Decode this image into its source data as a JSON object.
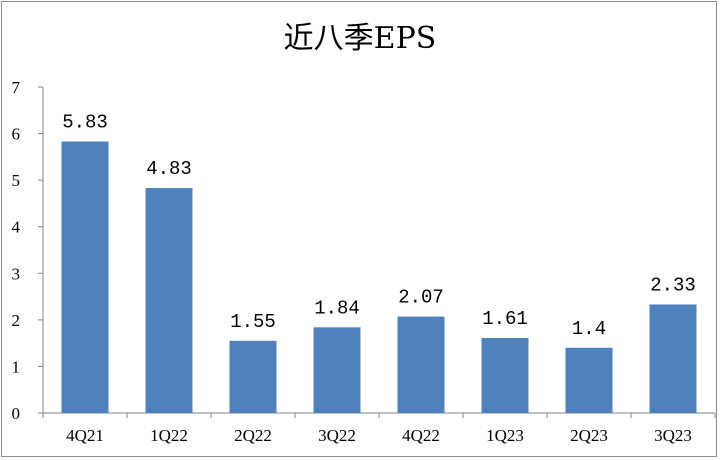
{
  "chart_data": {
    "type": "bar",
    "title": "近八季EPS",
    "xlabel": "",
    "ylabel": "",
    "categories": [
      "4Q21",
      "1Q22",
      "2Q22",
      "3Q22",
      "4Q22",
      "1Q23",
      "2Q23",
      "3Q23"
    ],
    "values": [
      5.83,
      4.83,
      1.55,
      1.84,
      2.07,
      1.61,
      1.4,
      2.33
    ],
    "data_labels": [
      "5.83",
      "4.83",
      "1.55",
      "1.84",
      "2.07",
      "1.61",
      "1.4",
      "2.33"
    ],
    "ylim": [
      0,
      7
    ],
    "yticks": [
      "0",
      "1",
      "2",
      "3",
      "4",
      "5",
      "6",
      "7"
    ],
    "grid": false,
    "legend": "none",
    "bar_color": "#4f81bd"
  }
}
